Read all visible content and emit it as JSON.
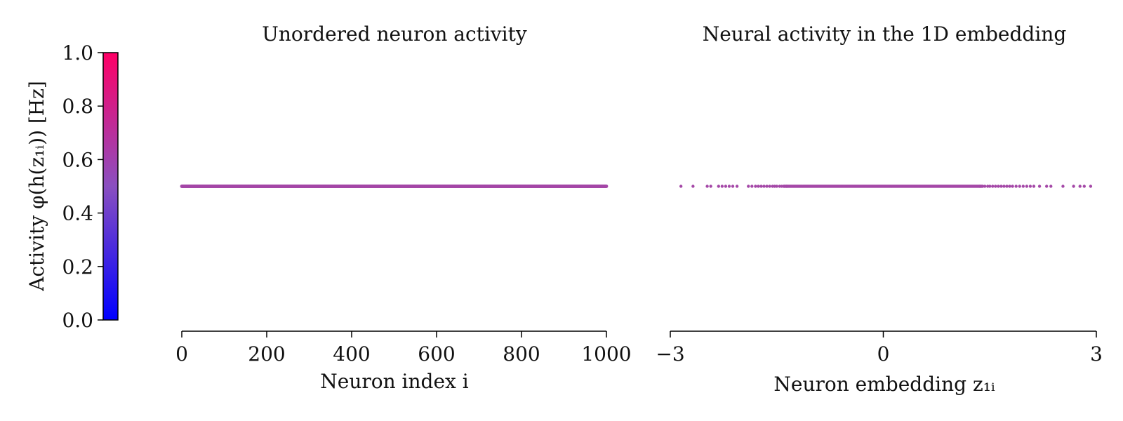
{
  "colorbar": {
    "label": "Activity φ(h(z₁ᵢ)) [Hz]",
    "ticks": [
      "0.0",
      "0.2",
      "0.4",
      "0.6",
      "0.8",
      "1.0"
    ],
    "colors": [
      "#0000ff",
      "#8a4fc0",
      "#ff0066"
    ]
  },
  "chart_data": [
    {
      "type": "scatter",
      "title": "Unordered neuron activity",
      "xlabel": "Neuron index i",
      "ylabel": "",
      "xlim": [
        0,
        1000
      ],
      "xticks": [
        "0",
        "200",
        "400",
        "600",
        "800",
        "1000"
      ],
      "marker_color": "#a447a7",
      "series": [
        {
          "x_range": [
            0,
            1000
          ],
          "n_points": 1000,
          "y": 0.5
        }
      ]
    },
    {
      "type": "scatter",
      "title": "Neural activity in the 1D embedding",
      "xlabel": "Neuron embedding z₁ᵢ",
      "ylabel": "",
      "xlim": [
        -3,
        3
      ],
      "xticks": [
        "−3",
        "0",
        "3"
      ],
      "marker_color": "#a447a7",
      "series": [
        {
          "x": [
            -2.85,
            -2.68,
            -2.48,
            -2.43,
            -2.32,
            -2.27,
            -2.22,
            -2.17,
            -2.12,
            -2.06,
            -1.9,
            -1.85,
            -1.8,
            -1.76,
            -1.72,
            -1.68,
            -1.64,
            -1.6,
            -1.56,
            -1.53,
            -1.5,
            -1.46,
            -1.43,
            -1.4,
            -1.36,
            1.36,
            1.4,
            1.43,
            1.47,
            1.5,
            1.54,
            1.58,
            1.62,
            1.66,
            1.7,
            1.74,
            1.78,
            1.82,
            1.87,
            1.92,
            1.97,
            2.02,
            2.07,
            2.12,
            2.2,
            2.3,
            2.36,
            2.53,
            2.68,
            2.77,
            2.83,
            2.92
          ],
          "dense_range": [
            -1.4,
            1.4
          ],
          "y": 0.5
        }
      ]
    }
  ]
}
